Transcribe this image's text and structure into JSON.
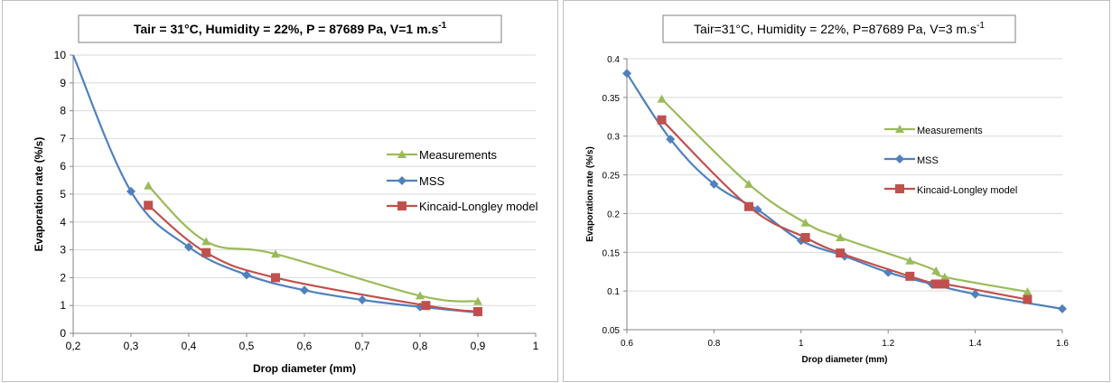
{
  "chart_data": [
    {
      "type": "line",
      "title": "Tair = 31°C, Humidity = 22%, P = 87689 Pa, V=1 m.s",
      "title_sup": "-1",
      "xlabel": "Drop diameter (mm)",
      "ylabel": "Evaporation rate (%/s)",
      "xlim": [
        0.2,
        1.0
      ],
      "ylim": [
        0,
        10
      ],
      "xticks": [
        "0,2",
        "0,3",
        "0,4",
        "0,5",
        "0,6",
        "0,7",
        "0,8",
        "0,9",
        "1"
      ],
      "yticks": [
        "0",
        "1",
        "2",
        "3",
        "4",
        "5",
        "6",
        "7",
        "8",
        "9",
        "10"
      ],
      "grid": true,
      "legend_position": "right",
      "series": [
        {
          "name": "Measurements",
          "color": "#9bbb59",
          "marker": "triangle",
          "x": [
            0.33,
            0.43,
            0.55,
            0.8,
            0.9
          ],
          "y": [
            5.3,
            3.3,
            2.85,
            1.35,
            1.15
          ]
        },
        {
          "name": "MSS",
          "color": "#4f81bd",
          "marker": "diamond",
          "x": [
            0.2,
            0.3,
            0.4,
            0.5,
            0.6,
            0.7,
            0.8,
            0.9
          ],
          "y": [
            10.0,
            5.1,
            3.1,
            2.1,
            1.55,
            1.2,
            0.95,
            0.75
          ],
          "marker_from": 1
        },
        {
          "name": "Kincaid-Longley model",
          "color": "#c0504d",
          "marker": "square",
          "x": [
            0.33,
            0.43,
            0.55,
            0.81,
            0.9
          ],
          "y": [
            4.6,
            2.9,
            2.0,
            1.0,
            0.78
          ]
        }
      ]
    },
    {
      "type": "line",
      "title": "Tair=31°C, Humidity = 22%, P=87689 Pa, V=3 m.s",
      "title_sup": "-1",
      "xlabel": "Drop diameter (mm)",
      "ylabel": "Evaporation rate (%/s)",
      "xlim": [
        0.6,
        1.6
      ],
      "ylim": [
        0.05,
        0.4
      ],
      "xticks": [
        "0.6",
        "0.8",
        "1",
        "1.2",
        "1.4",
        "1.6"
      ],
      "yticks": [
        "0.05",
        "0.1",
        "0.15",
        "0.2",
        "0.25",
        "0.3",
        "0.35",
        "0.4"
      ],
      "grid": true,
      "legend_position": "top-right",
      "series": [
        {
          "name": "Measurements",
          "color": "#9bbb59",
          "marker": "triangle",
          "x": [
            0.68,
            0.88,
            1.01,
            1.09,
            1.25,
            1.31,
            1.33,
            1.52
          ],
          "y": [
            0.348,
            0.238,
            0.188,
            0.169,
            0.139,
            0.126,
            0.118,
            0.099
          ]
        },
        {
          "name": "MSS",
          "color": "#4f81bd",
          "marker": "diamond",
          "x": [
            0.6,
            0.7,
            0.8,
            0.9,
            1.0,
            1.1,
            1.2,
            1.3,
            1.4,
            1.6
          ],
          "y": [
            0.381,
            0.296,
            0.238,
            0.205,
            0.165,
            0.145,
            0.124,
            0.109,
            0.096,
            0.077
          ]
        },
        {
          "name": "Kincaid-Longley model",
          "color": "#c0504d",
          "marker": "square",
          "x": [
            0.68,
            0.88,
            1.01,
            1.09,
            1.25,
            1.31,
            1.33,
            1.52
          ],
          "y": [
            0.321,
            0.209,
            0.169,
            0.149,
            0.119,
            0.109,
            0.109,
            0.089
          ]
        }
      ]
    }
  ]
}
